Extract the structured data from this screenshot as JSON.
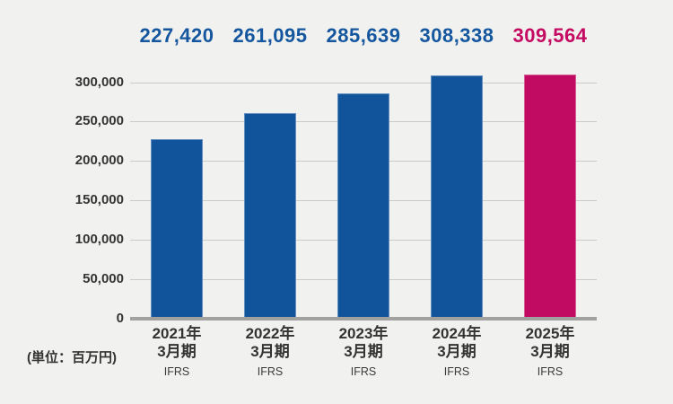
{
  "unit_note": "(単位：百万円)",
  "colors": {
    "background": "#F1F1EF",
    "bar_blue": "#11549B",
    "bar_highlight": "#C10A62",
    "value_label_blue": "#15579F",
    "value_label_highlight": "#C50A62",
    "gridline": "#CACAC8",
    "axis_baseline": "#A1A1A0",
    "text_dark": "#333333"
  },
  "chart_data": {
    "type": "bar",
    "title": "",
    "unit": "百万円",
    "categories": [
      {
        "year": "2021年",
        "period": "3月期",
        "standard": "IFRS"
      },
      {
        "year": "2022年",
        "period": "3月期",
        "standard": "IFRS"
      },
      {
        "year": "2023年",
        "period": "3月期",
        "standard": "IFRS"
      },
      {
        "year": "2024年",
        "period": "3月期",
        "standard": "IFRS"
      },
      {
        "year": "2025年",
        "period": "3月期",
        "standard": "IFRS"
      }
    ],
    "values": [
      227420,
      261095,
      285639,
      308338,
      309564
    ],
    "value_labels": [
      "227,420",
      "261,095",
      "285,639",
      "308,338",
      "309,564"
    ],
    "highlight_index": 4,
    "y_ticks": [
      "0",
      "50,000",
      "100,000",
      "150,000",
      "200,000",
      "250,000",
      "300,000"
    ],
    "y_tick_values": [
      0,
      50000,
      100000,
      150000,
      200000,
      250000,
      300000
    ],
    "ylim": [
      0,
      300000
    ],
    "grid": true,
    "legend": "none",
    "xlabel": "",
    "ylabel": ""
  }
}
